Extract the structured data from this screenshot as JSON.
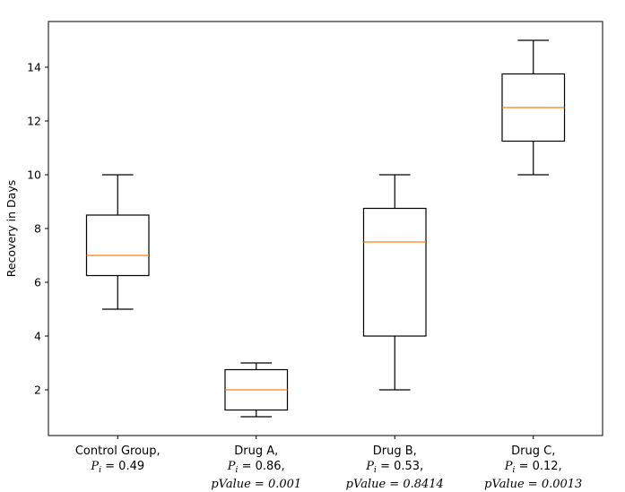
{
  "chart_data": {
    "type": "box",
    "title": "",
    "xlabel": "",
    "ylabel": "Recovery in Days",
    "ylim": [
      0.3,
      15.7
    ],
    "yticks": [
      "2",
      "4",
      "6",
      "8",
      "10",
      "12",
      "14"
    ],
    "grid": false,
    "box_color": "#000000",
    "median_color": "#ff7f0e",
    "categories": [
      {
        "line1": "Control Group,",
        "line2": {
          "prefix": "P",
          "sub": "i",
          "rest": " = 0.49",
          "suffix": ""
        },
        "line3": null
      },
      {
        "line1": "Drug A,",
        "line2": {
          "prefix": "P",
          "sub": "i",
          "rest": " = 0.86",
          "suffix": ","
        },
        "line3": "pValue = 0.001"
      },
      {
        "line1": "Drug B,",
        "line2": {
          "prefix": "P",
          "sub": "i",
          "rest": " = 0.53",
          "suffix": ","
        },
        "line3": "pValue = 0.8414"
      },
      {
        "line1": "Drug C,",
        "line2": {
          "prefix": "P",
          "sub": "i",
          "rest": " = 0.12",
          "suffix": ","
        },
        "line3": "pValue = 0.0013"
      }
    ],
    "boxes": [
      {
        "whisker_low": 5,
        "q1": 6.25,
        "median": 7,
        "q3": 8.5,
        "whisker_high": 10
      },
      {
        "whisker_low": 1,
        "q1": 1.25,
        "median": 2,
        "q3": 2.75,
        "whisker_high": 3
      },
      {
        "whisker_low": 2,
        "q1": 4,
        "median": 7.5,
        "q3": 8.75,
        "whisker_high": 10
      },
      {
        "whisker_low": 10,
        "q1": 11.25,
        "median": 12.5,
        "q3": 13.75,
        "whisker_high": 15
      }
    ]
  }
}
